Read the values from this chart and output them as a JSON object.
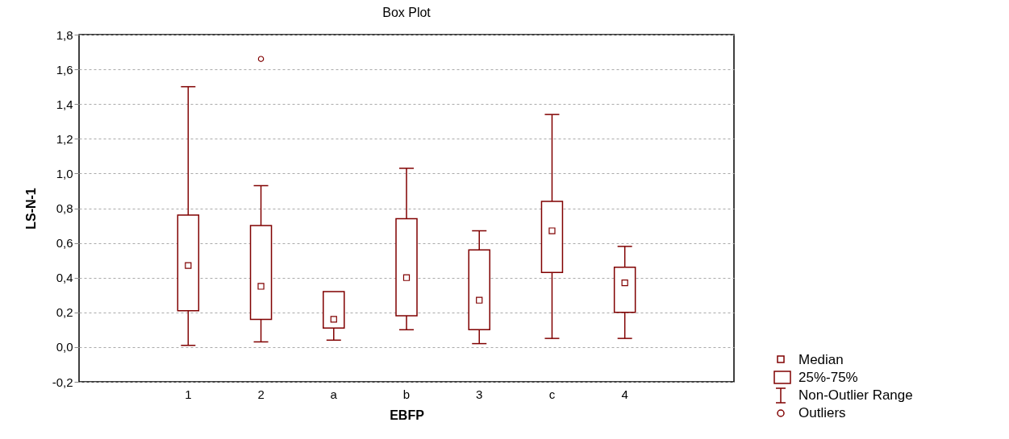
{
  "chart_data": {
    "type": "box",
    "title": "Box Plot",
    "xlabel": "EBFP",
    "ylabel": "LS-N-1",
    "categories": [
      "1",
      "2",
      "a",
      "b",
      "3",
      "c",
      "4"
    ],
    "series": [
      {
        "color": "#800000",
        "boxes": [
          {
            "low": 0.01,
            "q1": 0.21,
            "median": 0.47,
            "q3": 0.76,
            "high": 1.5
          },
          {
            "low": 0.03,
            "q1": 0.16,
            "median": 0.35,
            "q3": 0.7,
            "high": 0.93,
            "outliers": [
              1.66
            ]
          },
          {
            "low": 0.04,
            "q1": 0.11,
            "median": 0.16,
            "q3": 0.32,
            "high": 0.32
          },
          {
            "low": 0.1,
            "q1": 0.18,
            "median": 0.4,
            "q3": 0.74,
            "high": 1.03
          },
          {
            "low": 0.02,
            "q1": 0.1,
            "median": 0.27,
            "q3": 0.56,
            "high": 0.67
          },
          {
            "low": 0.05,
            "q1": 0.43,
            "median": 0.67,
            "q3": 0.84,
            "high": 1.34
          },
          {
            "low": 0.05,
            "q1": 0.2,
            "median": 0.37,
            "q3": 0.46,
            "high": 0.58
          }
        ]
      }
    ],
    "ylim": [
      -0.2,
      1.8
    ],
    "yticks": [
      {
        "value": -0.2,
        "label": "-0,2"
      },
      {
        "value": 0,
        "label": "0,0"
      },
      {
        "value": 0.2,
        "label": "0,2"
      },
      {
        "value": 0.4,
        "label": "0,4"
      },
      {
        "value": 0.6,
        "label": "0,6"
      },
      {
        "value": 0.8,
        "label": "0,8"
      },
      {
        "value": 1.0,
        "label": "1,0"
      },
      {
        "value": 1.2,
        "label": "1,2"
      },
      {
        "value": 1.4,
        "label": "1,4"
      },
      {
        "value": 1.6,
        "label": "1,6"
      },
      {
        "value": 1.8,
        "label": "1,8"
      }
    ],
    "grid": "y",
    "annotations": [
      "Median",
      "25%-75%",
      "Non-Outlier Range",
      "Outliers"
    ]
  }
}
